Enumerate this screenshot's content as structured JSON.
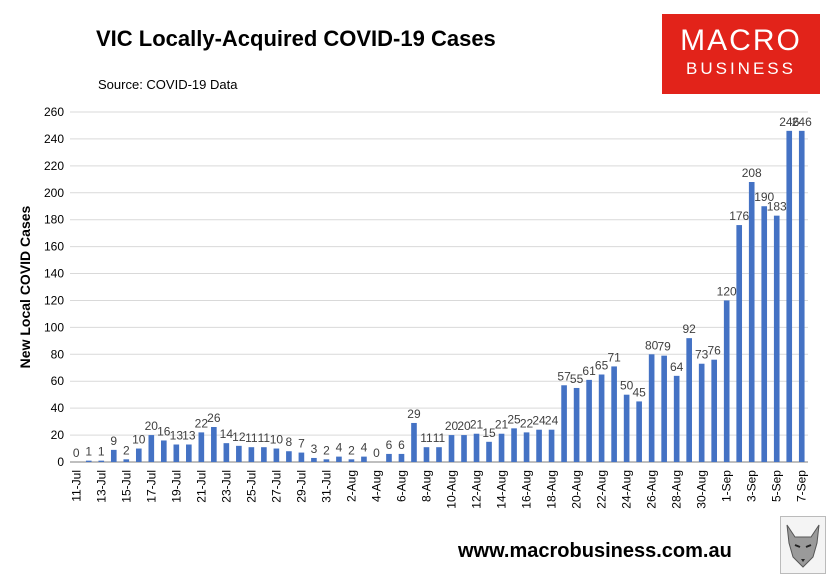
{
  "header": {
    "title": "VIC Locally-Acquired COVID-19 Cases",
    "source": "Source: COVID-19 Data"
  },
  "logo": {
    "line1": "MACRO",
    "line2": "BUSINESS"
  },
  "footer": {
    "website": "www.macrobusiness.com.au"
  },
  "colors": {
    "bar": "#4472c4",
    "gridline": "#d9d9d9",
    "logo_bg": "#e2231a"
  },
  "chart_data": {
    "type": "bar",
    "title": "VIC Locally-Acquired COVID-19 Cases",
    "xlabel": "",
    "ylabel": "New Local COVID Cases",
    "ylim": [
      0,
      260
    ],
    "yticks": [
      0,
      20,
      40,
      60,
      80,
      100,
      120,
      140,
      160,
      180,
      200,
      220,
      240,
      260
    ],
    "grid": true,
    "categories": [
      "11-Jul",
      "12-Jul",
      "13-Jul",
      "14-Jul",
      "15-Jul",
      "16-Jul",
      "17-Jul",
      "18-Jul",
      "19-Jul",
      "20-Jul",
      "21-Jul",
      "22-Jul",
      "23-Jul",
      "24-Jul",
      "25-Jul",
      "26-Jul",
      "27-Jul",
      "28-Jul",
      "29-Jul",
      "30-Jul",
      "31-Jul",
      "1-Aug",
      "2-Aug",
      "3-Aug",
      "4-Aug",
      "5-Aug",
      "6-Aug",
      "7-Aug",
      "8-Aug",
      "9-Aug",
      "10-Aug",
      "11-Aug",
      "12-Aug",
      "13-Aug",
      "14-Aug",
      "15-Aug",
      "16-Aug",
      "17-Aug",
      "18-Aug",
      "19-Aug",
      "20-Aug",
      "21-Aug",
      "22-Aug",
      "23-Aug",
      "24-Aug",
      "25-Aug",
      "26-Aug",
      "27-Aug",
      "28-Aug",
      "29-Aug",
      "30-Aug",
      "31-Aug",
      "1-Sep",
      "2-Sep",
      "3-Sep",
      "4-Sep",
      "5-Sep",
      "6-Sep",
      "7-Sep"
    ],
    "tick_labels": [
      "11-Jul",
      "13-Jul",
      "15-Jul",
      "17-Jul",
      "19-Jul",
      "21-Jul",
      "23-Jul",
      "25-Jul",
      "27-Jul",
      "29-Jul",
      "31-Jul",
      "2-Aug",
      "4-Aug",
      "6-Aug",
      "8-Aug",
      "10-Aug",
      "12-Aug",
      "14-Aug",
      "16-Aug",
      "18-Aug",
      "20-Aug",
      "22-Aug",
      "24-Aug",
      "26-Aug",
      "28-Aug",
      "30-Aug",
      "1-Sep",
      "3-Sep",
      "5-Sep",
      "7-Sep"
    ],
    "values": [
      0,
      1,
      1,
      9,
      2,
      10,
      20,
      16,
      13,
      13,
      22,
      26,
      14,
      12,
      11,
      11,
      10,
      8,
      7,
      3,
      2,
      4,
      2,
      4,
      0,
      6,
      6,
      29,
      11,
      11,
      20,
      20,
      21,
      15,
      21,
      25,
      22,
      24,
      24,
      57,
      55,
      61,
      65,
      71,
      50,
      45,
      80,
      79,
      64,
      92,
      73,
      76,
      120,
      176,
      208,
      190,
      183,
      246,
      246
    ]
  }
}
